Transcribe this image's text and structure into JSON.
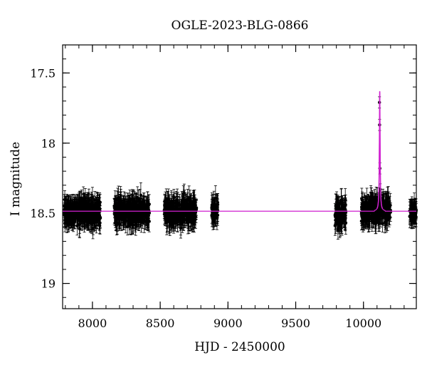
{
  "chart_data": {
    "type": "scatter",
    "title": "OGLE-2023-BLG-0866",
    "xlabel": "HJD - 2450000",
    "ylabel": "I magnitude",
    "xlim": [
      7780,
      10390
    ],
    "ylim": [
      19.18,
      17.3
    ],
    "y_inverted": true,
    "grid": false,
    "x_ticks": [
      {
        "value": 8000,
        "label": "8000"
      },
      {
        "value": 8500,
        "label": "8500"
      },
      {
        "value": 9000,
        "label": "9000"
      },
      {
        "value": 9500,
        "label": "9500"
      },
      {
        "value": 10000,
        "label": "10000"
      }
    ],
    "y_ticks": [
      {
        "value": 17.5,
        "label": "17.5"
      },
      {
        "value": 18,
        "label": "18"
      },
      {
        "value": 18.5,
        "label": "18.5"
      },
      {
        "value": 19,
        "label": "19"
      }
    ],
    "baseline_magnitude": 18.485,
    "model_color": "#d020d0",
    "point_color": "#000000",
    "observing_seasons": [
      {
        "start": 7790,
        "end": 8060,
        "mean": 18.49,
        "scatter": 0.07
      },
      {
        "start": 8160,
        "end": 8420,
        "mean": 18.49,
        "scatter": 0.07
      },
      {
        "start": 8530,
        "end": 8770,
        "mean": 18.49,
        "scatter": 0.07
      },
      {
        "start": 8880,
        "end": 8925,
        "mean": 18.48,
        "scatter": 0.06
      },
      {
        "start": 9790,
        "end": 9870,
        "mean": 18.51,
        "scatter": 0.08
      },
      {
        "start": 9985,
        "end": 10200,
        "mean": 18.48,
        "scatter": 0.07
      },
      {
        "start": 10340,
        "end": 10390,
        "mean": 18.49,
        "scatter": 0.04
      }
    ],
    "peak_points": [
      {
        "x": 10118,
        "y": 17.71
      },
      {
        "x": 10119,
        "y": 17.87
      },
      {
        "x": 10121,
        "y": 18.18
      },
      {
        "x": 10123,
        "y": 18.33
      },
      {
        "x": 10125,
        "y": 18.37
      },
      {
        "x": 10127,
        "y": 18.43
      }
    ],
    "model_peak": {
      "t0": 10120,
      "peak_magnitude": 17.63,
      "width_days": 3
    }
  }
}
